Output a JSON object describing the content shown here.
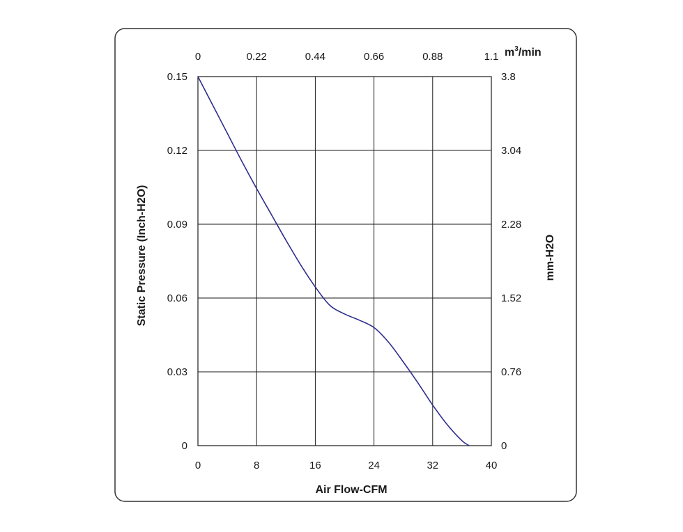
{
  "chart_data": {
    "type": "line",
    "xlabel": "Air Flow-CFM",
    "ylabel": "Static Pressure (Inch-H2O)",
    "xlim": [
      0,
      40
    ],
    "ylim": [
      0,
      0.15
    ],
    "x_ticks": [
      "0",
      "8",
      "16",
      "24",
      "32",
      "40"
    ],
    "y_ticks": [
      "0",
      "0.03",
      "0.06",
      "0.09",
      "0.12",
      "0.15"
    ],
    "top_axis": {
      "label_base": "m",
      "label_sup": "3",
      "label_rest": "/min",
      "ticks": [
        "0",
        "0.22",
        "0.44",
        "0.66",
        "0.88",
        "1.1"
      ]
    },
    "right_axis": {
      "label": "mm-H2O",
      "ticks": [
        "0",
        "0.76",
        "1.52",
        "2.28",
        "3.04",
        "3.8"
      ]
    },
    "grid": true,
    "line_color": "#2d2d8c",
    "series": [
      {
        "x": [
          0,
          2,
          4,
          6,
          8,
          10,
          12,
          14,
          16,
          18,
          20,
          22,
          24,
          26,
          28,
          30,
          32,
          34,
          36,
          37
        ],
        "y": [
          0.15,
          0.1385,
          0.127,
          0.1155,
          0.1045,
          0.094,
          0.0835,
          0.0735,
          0.0645,
          0.057,
          0.0535,
          0.051,
          0.048,
          0.042,
          0.034,
          0.0255,
          0.0165,
          0.0085,
          0.002,
          0
        ]
      }
    ]
  }
}
